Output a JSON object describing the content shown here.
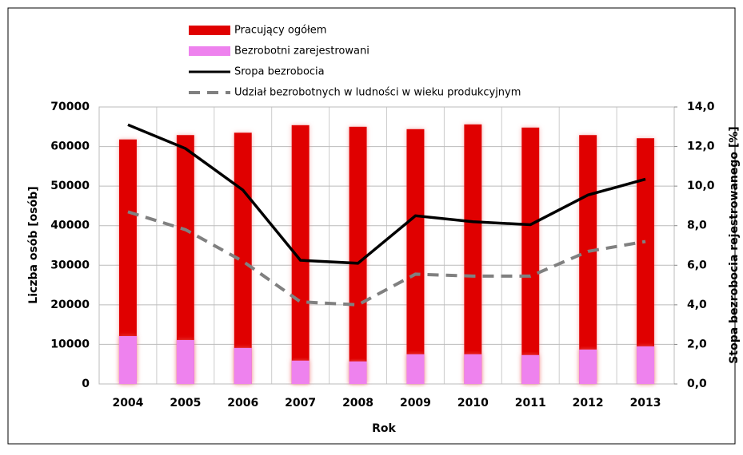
{
  "chart_data": {
    "type": "bar_line",
    "categories": [
      "2004",
      "2005",
      "2006",
      "2007",
      "2008",
      "2009",
      "2010",
      "2011",
      "2012",
      "2013"
    ],
    "series": [
      {
        "name": "Pracujący ogółem",
        "color": "#e00000",
        "kind": "bar",
        "values": [
          61800,
          62900,
          63500,
          65400,
          65000,
          64400,
          65600,
          64800,
          62900,
          62100
        ]
      },
      {
        "name": "Bezrobotni zarejestrowani",
        "color": "#ee82ee",
        "kind": "bar",
        "values": [
          12100,
          11100,
          9100,
          5900,
          5700,
          7500,
          7500,
          7300,
          8700,
          9500
        ]
      },
      {
        "name": "Sropa bezrobocia",
        "color": "#000000",
        "kind": "line",
        "axis": "y2",
        "values": [
          13.1,
          11.9,
          9.8,
          6.25,
          6.1,
          8.5,
          8.2,
          8.05,
          9.55,
          10.35
        ]
      },
      {
        "name": "Udział bezrobotnych w ludności w wieku produkcyjnym",
        "color": "#808080",
        "kind": "line",
        "dashed": true,
        "axis": "y2",
        "values": [
          8.7,
          7.8,
          6.2,
          4.15,
          4.0,
          5.55,
          5.45,
          5.45,
          6.7,
          7.2
        ]
      }
    ],
    "xlabel": "Rok",
    "ylabel": "Liczba osób [osób]",
    "y2label": "Stopa bezrobocia rejestrowanego [%]",
    "ylim": [
      0,
      70000
    ],
    "yticks": [
      0,
      10000,
      20000,
      30000,
      40000,
      50000,
      60000,
      70000
    ],
    "y2lim": [
      0,
      14
    ],
    "y2ticks": [
      {
        "value": 0,
        "label": "0,0"
      },
      {
        "value": 2,
        "label": "2,0"
      },
      {
        "value": 4,
        "label": "4,0"
      },
      {
        "value": 6,
        "label": "6,0"
      },
      {
        "value": 8,
        "label": "8,0"
      },
      {
        "value": 10,
        "label": "10,0"
      },
      {
        "value": 12,
        "label": "12,0"
      },
      {
        "value": 14,
        "label": "14,0"
      }
    ],
    "grid": true
  }
}
